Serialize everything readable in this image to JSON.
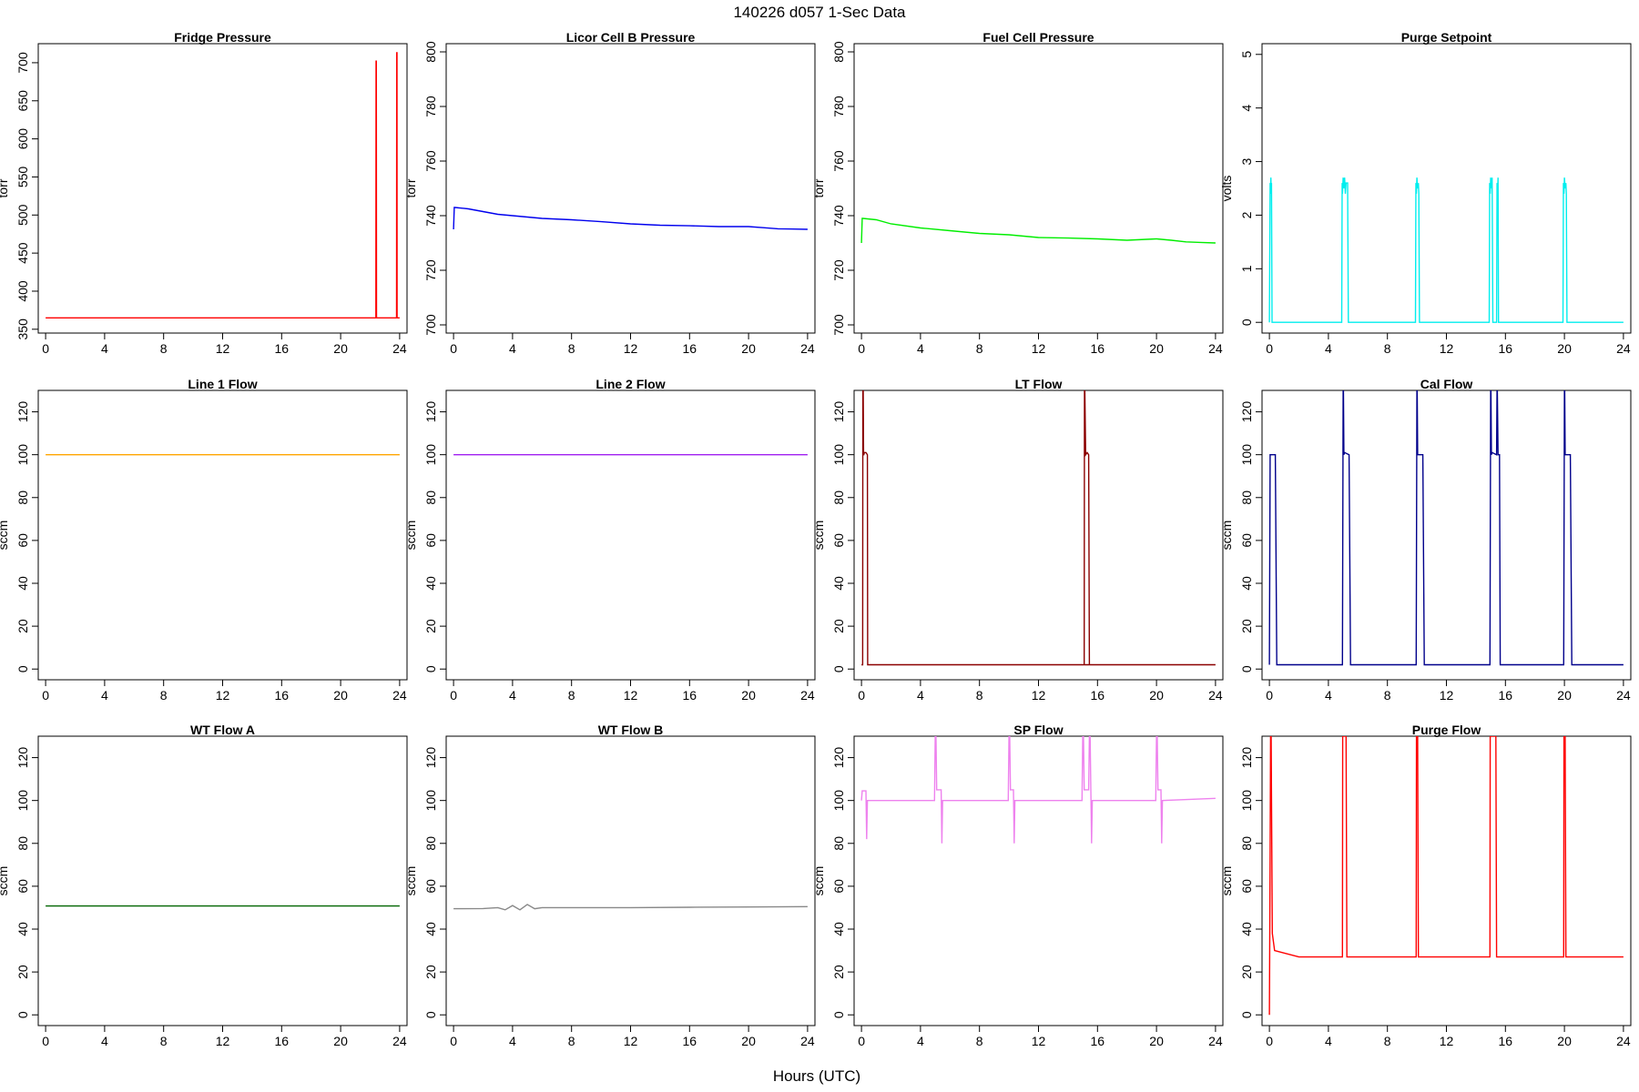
{
  "figure": {
    "title": "140226    d057    1-Sec Data",
    "xlabel": "Hours (UTC)"
  },
  "chart_data": [
    {
      "type": "line",
      "title": "Fridge Pressure",
      "ylabel": "torr",
      "color": "#ff0000",
      "xlim": [
        -0.5,
        24.5
      ],
      "ylim": [
        345,
        725
      ],
      "xticks": [
        0,
        4,
        8,
        12,
        16,
        20,
        24
      ],
      "yticks": [
        350,
        400,
        450,
        500,
        550,
        600,
        650,
        700
      ],
      "series": [
        {
          "x": [
            0,
            22.39,
            22.4,
            22.42,
            22.43,
            23.79,
            23.8,
            23.82,
            23.83,
            24
          ],
          "y": [
            365,
            365,
            702,
            702,
            365,
            365,
            713,
            713,
            365,
            365
          ]
        }
      ]
    },
    {
      "type": "line",
      "title": "Licor Cell B Pressure",
      "ylabel": "torr",
      "color": "#0000ee",
      "xlim": [
        -0.5,
        24.5
      ],
      "ylim": [
        697,
        803
      ],
      "xticks": [
        0,
        4,
        8,
        12,
        16,
        20,
        24
      ],
      "yticks": [
        700,
        720,
        740,
        760,
        780,
        800
      ],
      "series": [
        {
          "x": [
            0,
            0.05,
            0.1,
            1,
            2,
            3,
            4,
            6,
            8,
            10,
            12,
            14,
            16,
            18,
            20,
            21,
            22,
            23,
            24
          ],
          "y": [
            735,
            743,
            743,
            742.5,
            741.5,
            740.5,
            740,
            739,
            738.5,
            737.8,
            737,
            736.5,
            736.3,
            736,
            736,
            735.6,
            735.2,
            735.1,
            735
          ]
        }
      ]
    },
    {
      "type": "line",
      "title": "Fuel Cell Pressure",
      "ylabel": "torr",
      "color": "#00ee00",
      "xlim": [
        -0.5,
        24.5
      ],
      "ylim": [
        697,
        803
      ],
      "xticks": [
        0,
        4,
        8,
        12,
        16,
        20,
        24
      ],
      "yticks": [
        700,
        720,
        740,
        760,
        780,
        800
      ],
      "series": [
        {
          "x": [
            0,
            0.05,
            0.1,
            1,
            2,
            4,
            6,
            8,
            10,
            12,
            14,
            16,
            18,
            20,
            21,
            22,
            23,
            24
          ],
          "y": [
            730,
            739,
            739,
            738.5,
            737,
            735.5,
            734.5,
            733.5,
            733,
            732,
            731.8,
            731.5,
            731,
            731.5,
            731,
            730.4,
            730.2,
            730
          ]
        }
      ]
    },
    {
      "type": "line",
      "title": "Purge Setpoint",
      "ylabel": "volts",
      "color": "#00eeee",
      "xlim": [
        -0.5,
        24.5
      ],
      "ylim": [
        -0.2,
        5.2
      ],
      "xticks": [
        0,
        4,
        8,
        12,
        16,
        20,
        24
      ],
      "yticks": [
        0,
        1,
        2,
        3,
        4,
        5
      ],
      "series": [
        {
          "x": [
            0,
            0.05,
            0.07,
            0.1,
            0.12,
            0.14,
            0.18,
            0.2,
            4.9,
            4.93,
            4.95,
            5.0,
            5.05,
            5.1,
            5.15,
            5.2,
            5.3,
            5.35,
            9.9,
            9.93,
            9.96,
            10.0,
            10.05,
            10.1,
            10.13,
            10.17,
            14.9,
            14.93,
            14.97,
            15.0,
            15.05,
            15.1,
            15.15,
            15.4,
            15.43,
            15.47,
            15.5,
            15.53,
            19.9,
            19.93,
            19.97,
            20.0,
            20.05,
            20.1,
            20.13,
            20.17,
            24
          ],
          "y": [
            0,
            2.6,
            2.4,
            2.7,
            2.5,
            2.6,
            0,
            0,
            0,
            2.6,
            2.4,
            2.7,
            2.5,
            2.7,
            2.4,
            2.6,
            2.6,
            0,
            0,
            2.6,
            2.4,
            2.7,
            2.5,
            2.6,
            2.4,
            0,
            0,
            2.6,
            2.4,
            2.7,
            2.5,
            2.7,
            0,
            0,
            2.6,
            2.4,
            2.7,
            0,
            0,
            2.6,
            2.4,
            2.7,
            2.5,
            2.6,
            2.4,
            0,
            0
          ]
        }
      ]
    },
    {
      "type": "line",
      "title": "Line 1 Flow",
      "ylabel": "sccm",
      "color": "#ffa500",
      "xlim": [
        -0.5,
        24.5
      ],
      "ylim": [
        -5,
        130
      ],
      "xticks": [
        0,
        4,
        8,
        12,
        16,
        20,
        24
      ],
      "yticks": [
        0,
        20,
        40,
        60,
        80,
        100,
        120
      ],
      "series": [
        {
          "x": [
            0,
            24
          ],
          "y": [
            100,
            100
          ]
        }
      ]
    },
    {
      "type": "line",
      "title": "Line 2 Flow",
      "ylabel": "sccm",
      "color": "#a020f0",
      "xlim": [
        -0.5,
        24.5
      ],
      "ylim": [
        -5,
        130
      ],
      "xticks": [
        0,
        4,
        8,
        12,
        16,
        20,
        24
      ],
      "yticks": [
        0,
        20,
        40,
        60,
        80,
        100,
        120
      ],
      "series": [
        {
          "x": [
            0,
            24
          ],
          "y": [
            100,
            100
          ]
        }
      ]
    },
    {
      "type": "line",
      "title": "LT Flow",
      "ylabel": "sccm",
      "color": "#8b0000",
      "xlim": [
        -0.5,
        24.5
      ],
      "ylim": [
        -5,
        130
      ],
      "xticks": [
        0,
        4,
        8,
        12,
        16,
        20,
        24
      ],
      "yticks": [
        0,
        20,
        40,
        60,
        80,
        100,
        120
      ],
      "series": [
        {
          "x": [
            0,
            0.08,
            0.09,
            0.12,
            0.14,
            0.16,
            0.2,
            0.3,
            0.4,
            0.42,
            0.45,
            24,
            15.1,
            15.12,
            15.14,
            15.2,
            15.3,
            15.4,
            15.45,
            24
          ],
          "y": [
            2,
            2,
            130,
            130,
            100,
            100,
            101,
            101,
            100,
            2,
            2,
            2,
            2,
            130,
            130,
            100,
            101,
            100,
            2,
            2
          ]
        }
      ]
    },
    {
      "type": "line",
      "title": "Cal Flow",
      "ylabel": "sccm",
      "color": "#00008b",
      "xlim": [
        -0.5,
        24.5
      ],
      "ylim": [
        -5,
        130
      ],
      "xticks": [
        0,
        4,
        8,
        12,
        16,
        20,
        24
      ],
      "yticks": [
        0,
        20,
        40,
        60,
        80,
        100,
        120
      ],
      "series": [
        {
          "x": [
            0,
            0.05,
            0.1,
            0.4,
            0.5,
            4.95,
            5.0,
            5.02,
            5.05,
            5.1,
            5.4,
            5.5,
            9.95,
            10.0,
            10.02,
            10.05,
            10.1,
            10.4,
            10.5,
            14.95,
            15.0,
            15.02,
            15.05,
            15.1,
            15.4,
            15.43,
            15.45,
            15.5,
            15.6,
            15.65,
            19.95,
            20.0,
            20.02,
            20.05,
            20.1,
            20.4,
            20.5,
            24
          ],
          "y": [
            2,
            100,
            100,
            100,
            2,
            2,
            130,
            130,
            100,
            101,
            100,
            2,
            2,
            130,
            130,
            100,
            100,
            100,
            2,
            2,
            130,
            130,
            100,
            101,
            100,
            130,
            130,
            100,
            100,
            2,
            2,
            130,
            130,
            100,
            100,
            100,
            2,
            2
          ]
        }
      ]
    },
    {
      "type": "line",
      "title": "WT Flow A",
      "ylabel": "sccm",
      "color": "#006400",
      "xlim": [
        -0.5,
        24.5
      ],
      "ylim": [
        -5,
        130
      ],
      "xticks": [
        0,
        4,
        8,
        12,
        16,
        20,
        24
      ],
      "yticks": [
        0,
        20,
        40,
        60,
        80,
        100,
        120
      ],
      "series": [
        {
          "x": [
            0,
            24
          ],
          "y": [
            50.8,
            50.8
          ]
        }
      ]
    },
    {
      "type": "line",
      "title": "WT Flow B",
      "ylabel": "sccm",
      "color": "#888888",
      "xlim": [
        -0.5,
        24.5
      ],
      "ylim": [
        -5,
        130
      ],
      "xticks": [
        0,
        4,
        8,
        12,
        16,
        20,
        24
      ],
      "yticks": [
        0,
        20,
        40,
        60,
        80,
        100,
        120
      ],
      "series": [
        {
          "x": [
            0,
            2,
            3,
            3.5,
            4,
            4.5,
            5,
            5.5,
            6,
            8,
            12,
            16,
            20,
            24
          ],
          "y": [
            49.5,
            49.6,
            50,
            49,
            51,
            49,
            51.5,
            49.5,
            50,
            50,
            50,
            50.2,
            50.3,
            50.5
          ]
        }
      ]
    },
    {
      "type": "line",
      "title": "SP Flow",
      "ylabel": "sccm",
      "color": "#ee82ee",
      "xlim": [
        -0.5,
        24.5
      ],
      "ylim": [
        -5,
        130
      ],
      "xticks": [
        0,
        4,
        8,
        12,
        16,
        20,
        24
      ],
      "yticks": [
        0,
        20,
        40,
        60,
        80,
        100,
        120
      ],
      "series": [
        {
          "x": [
            0,
            0.05,
            0.3,
            0.35,
            0.4,
            0.5,
            4.95,
            5.0,
            5.05,
            5.1,
            5.4,
            5.45,
            5.5,
            9.95,
            10.0,
            10.05,
            10.1,
            10.3,
            10.35,
            10.4,
            14.95,
            15.0,
            15.05,
            15.1,
            15.4,
            15.45,
            15.5,
            15.6,
            15.65,
            19.95,
            20.0,
            20.05,
            20.1,
            20.3,
            20.35,
            20.4,
            24
          ],
          "y": [
            100,
            104.5,
            104.5,
            82,
            100,
            100,
            100,
            130,
            130,
            105,
            105,
            80,
            100,
            100,
            130,
            130,
            105,
            105,
            80,
            100,
            100,
            130,
            130,
            105,
            105,
            130,
            130,
            80,
            100,
            100,
            130,
            130,
            105,
            105,
            80,
            100,
            101
          ]
        }
      ]
    },
    {
      "type": "line",
      "title": "Purge Flow",
      "ylabel": "sccm",
      "color": "#ff0000",
      "xlim": [
        -0.5,
        24.5
      ],
      "ylim": [
        -5,
        130
      ],
      "xticks": [
        0,
        4,
        8,
        12,
        16,
        20,
        24
      ],
      "yticks": [
        0,
        20,
        40,
        60,
        80,
        100,
        120
      ],
      "series": [
        {
          "x": [
            0,
            0.05,
            0.08,
            0.12,
            0.2,
            0.35,
            2,
            4.95,
            4.97,
            5.0,
            5.15,
            5.2,
            5.25,
            8,
            9.95,
            9.97,
            10.05,
            10.1,
            12,
            14.95,
            14.97,
            15.05,
            15.1,
            15.3,
            15.35,
            15.4,
            18,
            19.95,
            19.97,
            20.05,
            20.1,
            24
          ],
          "y": [
            0,
            75,
            130,
            130,
            38,
            30,
            27,
            27,
            130,
            130,
            130,
            130,
            27,
            27,
            27,
            130,
            130,
            27,
            27,
            27,
            130,
            130,
            130,
            130,
            130,
            27,
            27,
            27,
            130,
            130,
            27,
            27
          ]
        }
      ]
    }
  ]
}
